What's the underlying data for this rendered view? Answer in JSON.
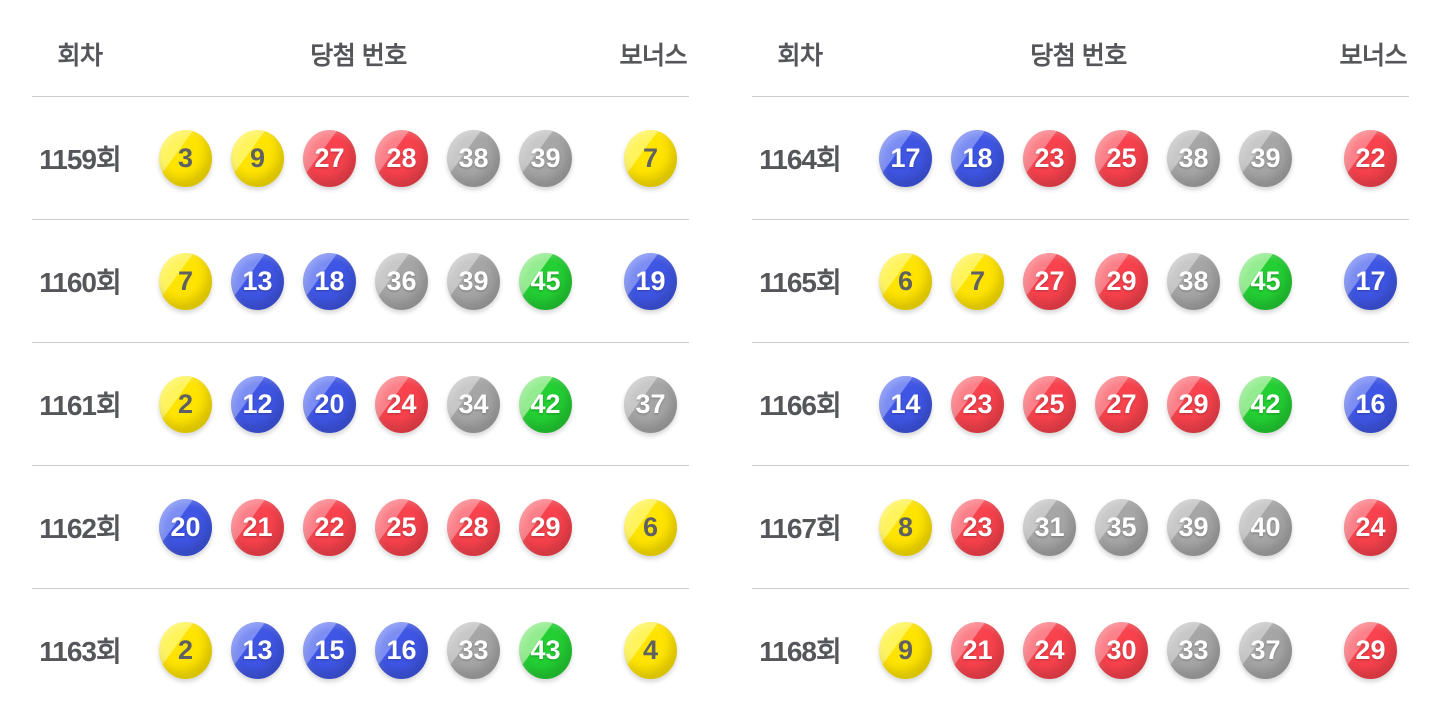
{
  "page": {
    "background": "#ffffff",
    "text_color": "#55565a",
    "divider_color": "#cccccc"
  },
  "table_headers": {
    "round": "회차",
    "numbers": "당첨 번호",
    "bonus": "보너스"
  },
  "ball_colors": {
    "yellow": {
      "base": "#FFE400",
      "light": "#FFF45C",
      "text": "#5f6062"
    },
    "blue": {
      "base": "#3F56E5",
      "light": "#7C8EF3",
      "text": "#ffffff"
    },
    "red": {
      "base": "#F8424D",
      "light": "#FB8089",
      "text": "#ffffff"
    },
    "gray": {
      "base": "#A6A6A6",
      "light": "#C8C8C8",
      "text": "#ffffff"
    },
    "green": {
      "base": "#23CF33",
      "light": "#93EC8F",
      "text": "#ffffff"
    }
  },
  "color_ranges": [
    {
      "max": 10,
      "color": "yellow"
    },
    {
      "max": 20,
      "color": "blue"
    },
    {
      "max": 30,
      "color": "red"
    },
    {
      "max": 40,
      "color": "gray"
    },
    {
      "max": 45,
      "color": "green"
    }
  ],
  "tables": [
    {
      "rows": [
        {
          "round": "1159회",
          "numbers": [
            3,
            9,
            27,
            28,
            38,
            39
          ],
          "bonus": 7
        },
        {
          "round": "1160회",
          "numbers": [
            7,
            13,
            18,
            36,
            39,
            45
          ],
          "bonus": 19
        },
        {
          "round": "1161회",
          "numbers": [
            2,
            12,
            20,
            24,
            34,
            42
          ],
          "bonus": 37
        },
        {
          "round": "1162회",
          "numbers": [
            20,
            21,
            22,
            25,
            28,
            29
          ],
          "bonus": 6
        },
        {
          "round": "1163회",
          "numbers": [
            2,
            13,
            15,
            16,
            33,
            43
          ],
          "bonus": 4
        }
      ]
    },
    {
      "rows": [
        {
          "round": "1164회",
          "numbers": [
            17,
            18,
            23,
            25,
            38,
            39
          ],
          "bonus": 22
        },
        {
          "round": "1165회",
          "numbers": [
            6,
            7,
            27,
            29,
            38,
            45
          ],
          "bonus": 17
        },
        {
          "round": "1166회",
          "numbers": [
            14,
            23,
            25,
            27,
            29,
            42
          ],
          "bonus": 16
        },
        {
          "round": "1167회",
          "numbers": [
            8,
            23,
            31,
            35,
            39,
            40
          ],
          "bonus": 24
        },
        {
          "round": "1168회",
          "numbers": [
            9,
            21,
            24,
            30,
            33,
            37
          ],
          "bonus": 29
        }
      ]
    }
  ]
}
